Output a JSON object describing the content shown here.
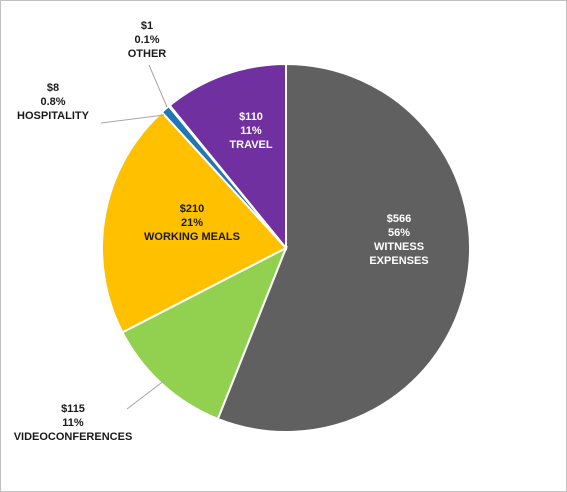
{
  "chart_data": {
    "type": "pie",
    "title": "",
    "slices": [
      {
        "category": "WITNESS EXPENSES",
        "category_lines": [
          "WITNESS",
          "EXPENSES"
        ],
        "value": 566,
        "value_label": "$566",
        "percent_label": "56%",
        "color": "#606060",
        "label_color": "#ffffff"
      },
      {
        "category": "VIDEOCONFERENCES",
        "category_lines": [
          "VIDEOCONFERENCES"
        ],
        "value": 115,
        "value_label": "$115",
        "percent_label": "11%",
        "color": "#92d050",
        "label_color": "#1a1a1a"
      },
      {
        "category": "WORKING MEALS",
        "category_lines": [
          "WORKING MEALS"
        ],
        "value": 210,
        "value_label": "$210",
        "percent_label": "21%",
        "color": "#ffc000",
        "label_color": "#1a1a1a"
      },
      {
        "category": "HOSPITALITY",
        "category_lines": [
          "HOSPITALITY"
        ],
        "value": 8,
        "value_label": "$8",
        "percent_label": "0.8%",
        "color": "#1f77b4",
        "label_color": "#1a1a1a"
      },
      {
        "category": "OTHER",
        "category_lines": [
          "OTHER"
        ],
        "value": 1,
        "value_label": "$1",
        "percent_label": "0.1%",
        "color": "#ffffff",
        "label_color": "#1a1a1a"
      },
      {
        "category": "TRAVEL",
        "category_lines": [
          "TRAVEL"
        ],
        "value": 110,
        "value_label": "$110",
        "percent_label": "11%",
        "color": "#7030a0",
        "label_color": "#ffffff"
      }
    ],
    "start": "top",
    "direction": "clockwise",
    "legend": "none"
  }
}
